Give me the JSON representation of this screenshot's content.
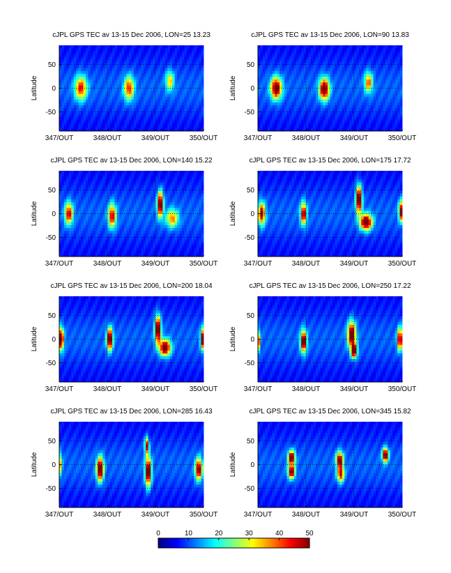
{
  "chart_data": {
    "type": "heatmap",
    "x_ticks": [
      "347/OUT",
      "348/OUT",
      "349/OUT",
      "350/OUT"
    ],
    "x_range": [
      347,
      350
    ],
    "y_range": [
      -90,
      90
    ],
    "y_ticks": [
      50,
      0,
      -50
    ],
    "ylabel": "Latitude",
    "grid": "dotted",
    "colorbar": {
      "range": [
        0,
        50
      ],
      "ticks": [
        "0",
        "10",
        "20",
        "30",
        "40",
        "50"
      ],
      "colormap": "jet"
    },
    "panels": [
      {
        "title": "cJPL GPS TEC av 13-15 Dec 2006, LON=25  13.23",
        "blobs": [
          {
            "x": 347.45,
            "y": 0,
            "peak": 34,
            "w": 0.12,
            "h": 24
          },
          {
            "x": 348.45,
            "y": 0,
            "peak": 33,
            "w": 0.1,
            "h": 24
          },
          {
            "x": 349.3,
            "y": 15,
            "peak": 24,
            "w": 0.08,
            "h": 20
          }
        ]
      },
      {
        "title": "cJPL GPS TEC av 13-15 Dec 2006, LON=90  13.83",
        "blobs": [
          {
            "x": 347.38,
            "y": 0,
            "peak": 46,
            "w": 0.11,
            "h": 22
          },
          {
            "x": 348.38,
            "y": -2,
            "peak": 47,
            "w": 0.1,
            "h": 22
          },
          {
            "x": 349.3,
            "y": 12,
            "peak": 30,
            "w": 0.08,
            "h": 20
          }
        ]
      },
      {
        "title": "cJPL GPS TEC av 13-15 Dec 2006, LON=140  15.22",
        "blobs": [
          {
            "x": 347.2,
            "y": 0,
            "peak": 37,
            "w": 0.08,
            "h": 22
          },
          {
            "x": 348.1,
            "y": -5,
            "peak": 37,
            "w": 0.08,
            "h": 24
          },
          {
            "x": 349.1,
            "y": 20,
            "peak": 48,
            "w": 0.06,
            "h": 26
          },
          {
            "x": 349.35,
            "y": -10,
            "peak": 28,
            "w": 0.12,
            "h": 18
          }
        ]
      },
      {
        "title": "cJPL GPS TEC av 13-15 Dec 2006, LON=175  17.72",
        "blobs": [
          {
            "x": 347.08,
            "y": 0,
            "peak": 42,
            "w": 0.07,
            "h": 22
          },
          {
            "x": 347.95,
            "y": 0,
            "peak": 42,
            "w": 0.06,
            "h": 22
          },
          {
            "x": 349.1,
            "y": 30,
            "peak": 50,
            "w": 0.06,
            "h": 28
          },
          {
            "x": 349.25,
            "y": -18,
            "peak": 50,
            "w": 0.12,
            "h": 16
          },
          {
            "x": 349.98,
            "y": 5,
            "peak": 44,
            "w": 0.05,
            "h": 20
          }
        ]
      },
      {
        "title": "cJPL GPS TEC av 13-15 Dec 2006, LON=200  18.04",
        "blobs": [
          {
            "x": 347.03,
            "y": 0,
            "peak": 50,
            "w": 0.06,
            "h": 22
          },
          {
            "x": 348.05,
            "y": 0,
            "peak": 50,
            "w": 0.06,
            "h": 22
          },
          {
            "x": 349.05,
            "y": 20,
            "peak": 50,
            "w": 0.06,
            "h": 28
          },
          {
            "x": 349.2,
            "y": -18,
            "peak": 50,
            "w": 0.11,
            "h": 16
          },
          {
            "x": 349.98,
            "y": 0,
            "peak": 48,
            "w": 0.04,
            "h": 20
          }
        ]
      },
      {
        "title": "cJPL GPS TEC av 13-15 Dec 2006, LON=250  17.22",
        "blobs": [
          {
            "x": 347.0,
            "y": -5,
            "peak": 40,
            "w": 0.04,
            "h": 20
          },
          {
            "x": 347.95,
            "y": -5,
            "peak": 49,
            "w": 0.06,
            "h": 22
          },
          {
            "x": 348.95,
            "y": 10,
            "peak": 48,
            "w": 0.08,
            "h": 26
          },
          {
            "x": 349.0,
            "y": -25,
            "peak": 50,
            "w": 0.06,
            "h": 14
          },
          {
            "x": 349.95,
            "y": 0,
            "peak": 45,
            "w": 0.05,
            "h": 22
          }
        ]
      },
      {
        "title": "cJPL GPS TEC av 13-15 Dec 2006, LON=285  16.43",
        "blobs": [
          {
            "x": 347.0,
            "y": 0,
            "peak": 30,
            "w": 0.05,
            "h": 22
          },
          {
            "x": 347.85,
            "y": -10,
            "peak": 50,
            "w": 0.07,
            "h": 24
          },
          {
            "x": 348.85,
            "y": -15,
            "peak": 50,
            "w": 0.06,
            "h": 30
          },
          {
            "x": 348.82,
            "y": 40,
            "peak": 40,
            "w": 0.04,
            "h": 16
          },
          {
            "x": 349.9,
            "y": -10,
            "peak": 44,
            "w": 0.07,
            "h": 22
          }
        ]
      },
      {
        "title": "cJPL GPS TEC av 13-15 Dec 2006, LON=345  15.82",
        "blobs": [
          {
            "x": 347.7,
            "y": 15,
            "peak": 48,
            "w": 0.07,
            "h": 14
          },
          {
            "x": 347.7,
            "y": -15,
            "peak": 45,
            "w": 0.07,
            "h": 14
          },
          {
            "x": 348.7,
            "y": 10,
            "peak": 45,
            "w": 0.07,
            "h": 16
          },
          {
            "x": 348.72,
            "y": -20,
            "peak": 38,
            "w": 0.07,
            "h": 16
          },
          {
            "x": 349.65,
            "y": 20,
            "peak": 50,
            "w": 0.06,
            "h": 14
          }
        ]
      }
    ]
  }
}
